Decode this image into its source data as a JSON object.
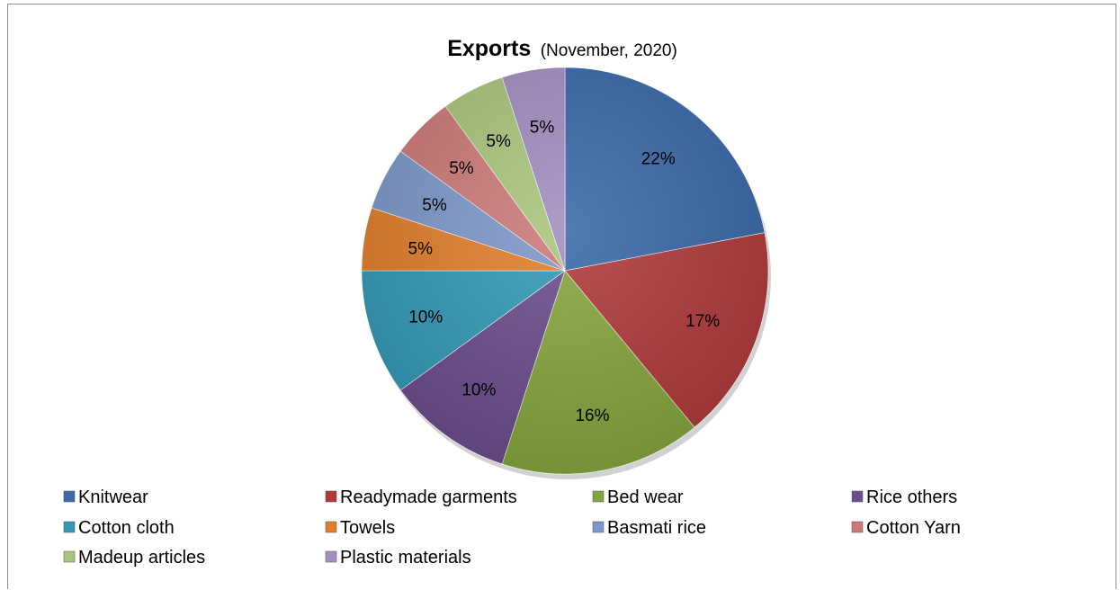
{
  "chart_data": {
    "type": "pie",
    "title": "Exports",
    "subtitle": "(November, 2020)",
    "categories": [
      "Knitwear",
      "Readymade garments",
      "Bed wear",
      "Rice others",
      "Cotton cloth",
      "Towels",
      "Basmati rice",
      "Cotton Yarn",
      "Madeup articles",
      "Plastic materials"
    ],
    "values": [
      22,
      17,
      16,
      10,
      10,
      5,
      5,
      5,
      5,
      5
    ],
    "labels": [
      "22%",
      "17%",
      "16%",
      "10%",
      "10%",
      "5%",
      "5%",
      "5%",
      "5%",
      "5%"
    ],
    "colors": [
      "#3A68A8",
      "#B0393A",
      "#86A53D",
      "#6B4C8E",
      "#3399B5",
      "#E07E2C",
      "#7C98C8",
      "#CC7A78",
      "#A9C57C",
      "#A48DC0"
    ],
    "legend_position": "bottom"
  }
}
